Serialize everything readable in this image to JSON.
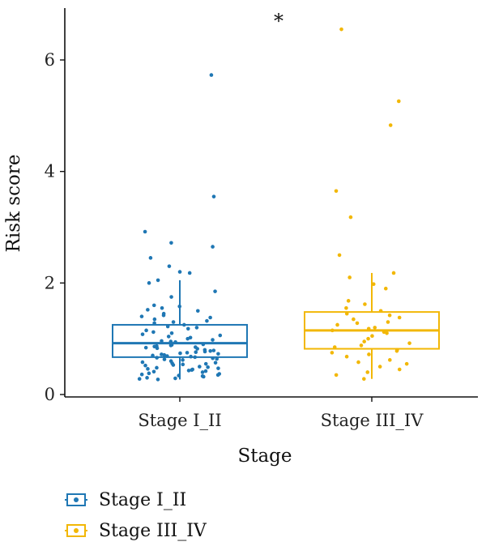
{
  "chart_data": {
    "type": "box",
    "xlabel": "Stage",
    "ylabel": "Risk score",
    "ylim": [
      0,
      6.85
    ],
    "yticks": [
      0,
      2,
      4,
      6
    ],
    "annotation": "*",
    "groups": [
      {
        "name": "Stage I_II",
        "color": "#1f77b4",
        "box": {
          "min": 0.27,
          "q1": 0.67,
          "median": 0.92,
          "q3": 1.25,
          "max": 2.05
        },
        "points": [
          5.73,
          3.55,
          2.92,
          2.72,
          2.65,
          2.45,
          2.3,
          2.2,
          2.18,
          2.05,
          2.0,
          1.85,
          1.75,
          1.6,
          1.58,
          1.55,
          1.52,
          1.5,
          1.45,
          1.42,
          1.4,
          1.38,
          1.35,
          1.32,
          1.3,
          1.28,
          1.25,
          1.22,
          1.2,
          1.18,
          1.15,
          1.12,
          1.1,
          1.08,
          1.06,
          1.04,
          1.02,
          1.0,
          0.98,
          0.96,
          0.95,
          0.94,
          0.92,
          0.9,
          0.89,
          0.88,
          0.87,
          0.86,
          0.85,
          0.84,
          0.83,
          0.82,
          0.8,
          0.79,
          0.78,
          0.77,
          0.76,
          0.75,
          0.74,
          0.73,
          0.72,
          0.71,
          0.7,
          0.69,
          0.68,
          0.67,
          0.66,
          0.65,
          0.64,
          0.63,
          0.62,
          0.6,
          0.58,
          0.57,
          0.56,
          0.55,
          0.54,
          0.53,
          0.52,
          0.5,
          0.49,
          0.48,
          0.47,
          0.46,
          0.45,
          0.44,
          0.43,
          0.42,
          0.41,
          0.4,
          0.38,
          0.37,
          0.36,
          0.35,
          0.34,
          0.33,
          0.32,
          0.3,
          0.29,
          0.28,
          0.27
        ]
      },
      {
        "name": "Stage III_IV",
        "color": "#f2b705",
        "box": {
          "min": 0.28,
          "q1": 0.82,
          "median": 1.15,
          "q3": 1.48,
          "max": 2.18
        },
        "points": [
          6.55,
          5.26,
          4.83,
          3.65,
          3.18,
          2.5,
          2.18,
          2.1,
          1.98,
          1.9,
          1.68,
          1.62,
          1.55,
          1.5,
          1.45,
          1.42,
          1.38,
          1.35,
          1.3,
          1.28,
          1.25,
          1.2,
          1.18,
          1.15,
          1.12,
          1.1,
          1.05,
          1.0,
          0.95,
          0.92,
          0.88,
          0.85,
          0.8,
          0.78,
          0.75,
          0.72,
          0.68,
          0.62,
          0.58,
          0.55,
          0.5,
          0.45,
          0.4,
          0.35,
          0.28
        ]
      }
    ]
  }
}
